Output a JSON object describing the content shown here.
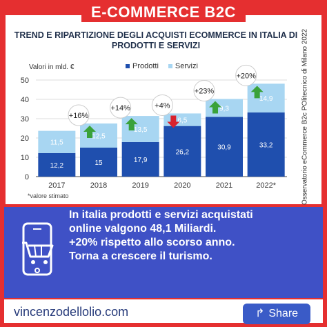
{
  "banner": {
    "title": "E-COMMERCE B2C"
  },
  "chart_data": {
    "type": "bar",
    "stacked": true,
    "title": "TREND E RIPARTIZIONE DEGLI ACQUISTI ECOMMERCE IN ITALIA DI PRODOTTI E SERVIZI",
    "ylabel": "Valori in mld. €",
    "ylim": [
      0,
      50
    ],
    "yticks": [
      0,
      10,
      20,
      30,
      40,
      50
    ],
    "grid": true,
    "legend_position": "top",
    "categories": [
      "2017",
      "2018",
      "2019",
      "2020",
      "2021",
      "2022*"
    ],
    "series": [
      {
        "name": "Prodotti",
        "values": [
          12.2,
          15,
          17.9,
          26.2,
          30.9,
          33.2
        ],
        "labels": [
          "12,2",
          "15",
          "17,9",
          "26,2",
          "30,9",
          "33,2"
        ],
        "color": "#1f4fae"
      },
      {
        "name": "Servizi",
        "values": [
          11.5,
          12.5,
          13.5,
          6.5,
          9.3,
          14.9
        ],
        "labels": [
          "11,5",
          "12,5",
          "13,5",
          "6,5",
          "9,3",
          "14,9"
        ],
        "color": "#a8d6f2"
      }
    ],
    "growth": [
      {
        "from": "2017",
        "to": "2018",
        "label": "+16%",
        "direction": "up"
      },
      {
        "from": "2018",
        "to": "2019",
        "label": "+14%",
        "direction": "up"
      },
      {
        "from": "2019",
        "to": "2020",
        "label": "+4%",
        "direction": "down"
      },
      {
        "from": "2020",
        "to": "2021",
        "label": "+23%",
        "direction": "up"
      },
      {
        "from": "2021",
        "to": "2022*",
        "label": "+20%",
        "direction": "up"
      }
    ],
    "source": "Fonte: Osservatorio eCommerce B2c POlitecnico di Milano 2022",
    "note": "*valore stimato"
  },
  "message": {
    "lines": [
      "In italia prodotti e servizi acquistati",
      "online valgono 48,1 Miliardi.",
      "+20% rispetto allo scorso anno.",
      "Torna a crescere il turismo."
    ]
  },
  "footer": {
    "site": "vincenzodellolio.com",
    "share_label": "Share"
  },
  "icons": {
    "cart": "shopping-cart-phone-icon",
    "share": "share-arrow-icon"
  },
  "colors": {
    "accent_red": "#e52f30",
    "panel_blue": "#3f51c6",
    "growth_up": "#3aa23a",
    "growth_down": "#d9232d"
  }
}
